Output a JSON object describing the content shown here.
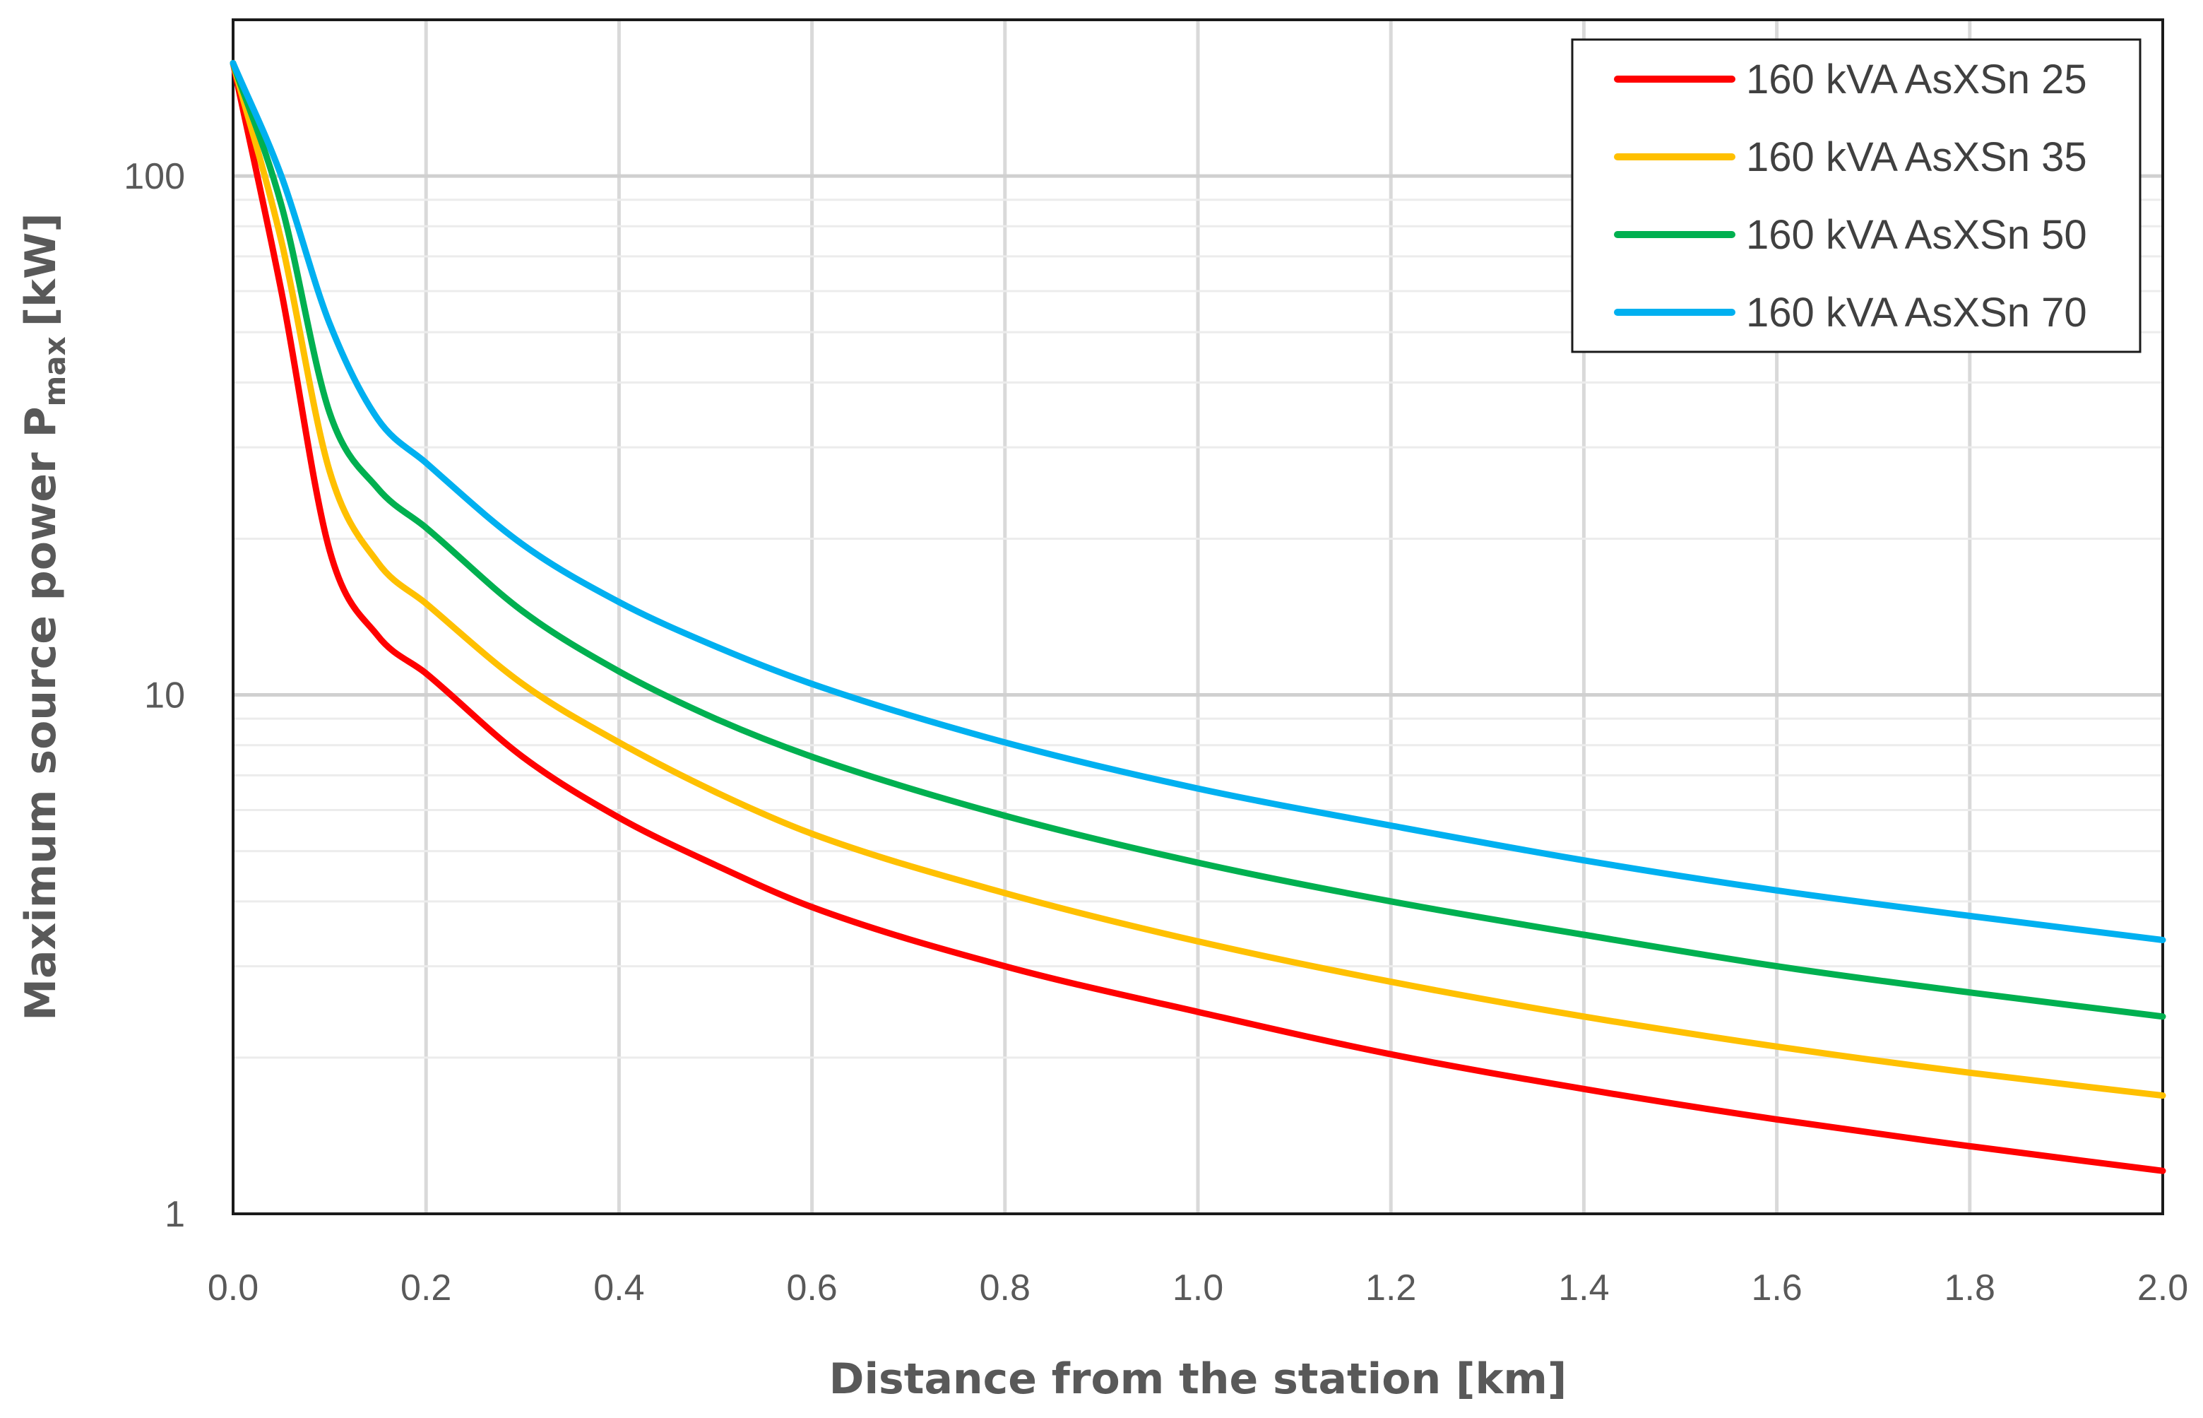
{
  "chart_data": {
    "type": "line",
    "title": "",
    "xlabel": "Distance from the station [km]",
    "ylabel": {
      "main": "Maximum source power P",
      "subscript": "max",
      "unit": "[kW]"
    },
    "xlim": [
      0,
      2
    ],
    "ylim": [
      1,
      200
    ],
    "yscale": "log",
    "grid": true,
    "legend_position": "top-right",
    "x_ticks": [
      "0.0",
      "0.2",
      "0.4",
      "0.6",
      "0.8",
      "1.0",
      "1.2",
      "1.4",
      "1.6",
      "1.8",
      "2.0"
    ],
    "y_ticks": [
      "1",
      "10",
      "100"
    ],
    "x": [
      0,
      0.05,
      0.1,
      0.15,
      0.2,
      0.3,
      0.4,
      0.5,
      0.6,
      0.8,
      1.0,
      1.2,
      1.4,
      1.6,
      1.8,
      2.0
    ],
    "series": [
      {
        "name": "160 kVA AsXSn 25",
        "color": "#ff0000",
        "values": [
          165,
          60,
          19,
          13,
          11,
          7.6,
          5.8,
          4.7,
          3.9,
          3.0,
          2.45,
          2.03,
          1.74,
          1.52,
          1.35,
          1.21
        ]
      },
      {
        "name": "160 kVA AsXSn 35",
        "color": "#ffc000",
        "values": [
          165,
          75,
          27,
          18,
          15,
          10.5,
          8.1,
          6.5,
          5.4,
          4.15,
          3.35,
          2.8,
          2.4,
          2.1,
          1.87,
          1.69
        ]
      },
      {
        "name": "160 kVA AsXSn 50",
        "color": "#00b050",
        "values": [
          165,
          88,
          35,
          25,
          21,
          14.5,
          11.1,
          9.0,
          7.6,
          5.85,
          4.75,
          4.0,
          3.45,
          3.0,
          2.67,
          2.4
        ]
      },
      {
        "name": "160 kVA AsXSn 70",
        "color": "#00b0f0",
        "values": [
          165,
          100,
          52,
          34,
          28,
          19.5,
          15.1,
          12.4,
          10.5,
          8.1,
          6.6,
          5.6,
          4.8,
          4.2,
          3.75,
          3.37
        ]
      }
    ]
  }
}
